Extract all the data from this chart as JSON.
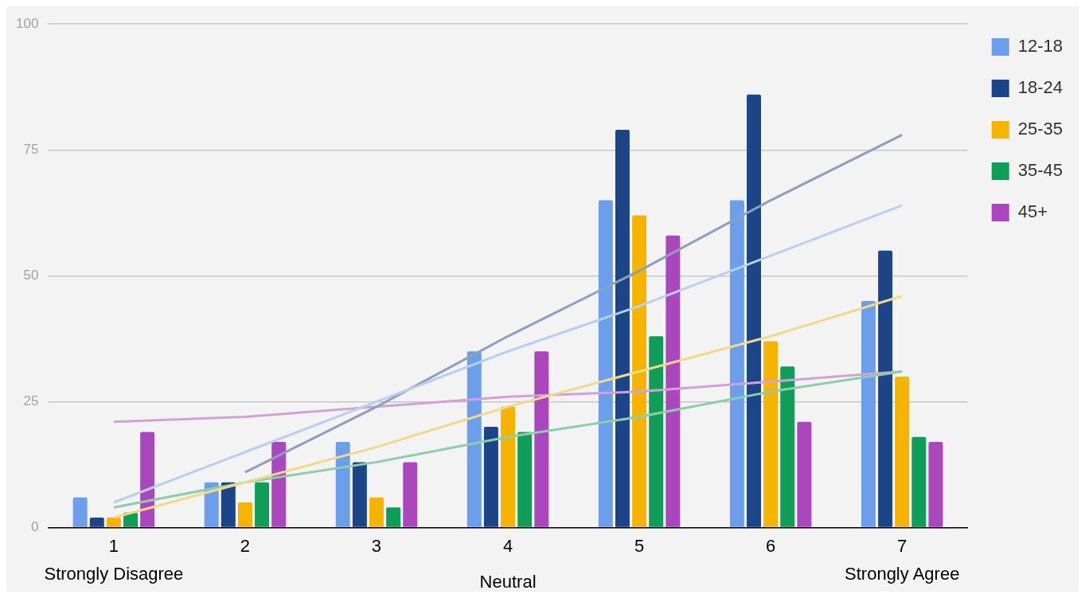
{
  "chart_data": {
    "type": "bar",
    "categories": [
      "1",
      "2",
      "3",
      "4",
      "5",
      "6",
      "7"
    ],
    "series": [
      {
        "name": "12-18",
        "color": "#6d9eeb",
        "values": [
          6,
          9,
          17,
          35,
          65,
          65,
          45
        ]
      },
      {
        "name": "18-24",
        "color": "#1c4587",
        "values": [
          2,
          9,
          13,
          20,
          79,
          86,
          55
        ]
      },
      {
        "name": "25-35",
        "color": "#f4b400",
        "values": [
          2,
          5,
          6,
          24,
          62,
          37,
          30
        ]
      },
      {
        "name": "35-45",
        "color": "#0f9d58",
        "values": [
          3,
          9,
          4,
          19,
          38,
          32,
          18
        ]
      },
      {
        "name": "45+",
        "color": "#ab47bc",
        "values": [
          19,
          17,
          13,
          35,
          58,
          21,
          17
        ]
      },
      {
        "type": "line",
        "color": "#b9cff2",
        "values": [
          5,
          15,
          25,
          35,
          44,
          54,
          64
        ]
      },
      {
        "type": "line",
        "color": "#8d9fbd",
        "values": [
          null,
          11,
          24,
          38,
          51,
          65,
          78
        ]
      },
      {
        "type": "line",
        "color": "#f2d98a",
        "values": [
          2,
          9,
          16,
          24,
          31,
          38,
          46
        ]
      },
      {
        "type": "line",
        "color": "#8ccdac",
        "values": [
          4,
          9,
          13,
          18,
          22,
          27,
          31
        ]
      },
      {
        "type": "line",
        "color": "#d1a2da",
        "values": [
          21,
          22,
          24,
          26,
          27,
          29,
          31
        ]
      }
    ],
    "ylim": [
      0,
      100
    ],
    "yticks": [
      0,
      25,
      50,
      75,
      100
    ],
    "grid": "y",
    "legend": "right",
    "marker": "none",
    "annotations": [
      "Strongly Disagree",
      "Neutral",
      "Strongly Agree"
    ]
  }
}
